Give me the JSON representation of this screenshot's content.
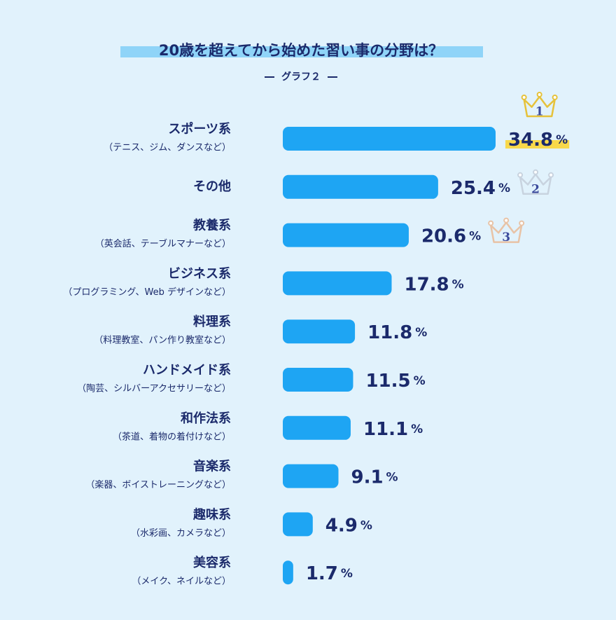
{
  "chart_data": {
    "type": "bar",
    "orientation": "horizontal",
    "title": "20歳を超えてから始めた習い事の分野は？",
    "subtitle": "グラフ２",
    "categories": [
      "スポーツ系",
      "その他",
      "教養系",
      "ビジネス系",
      "料理系",
      "ハンドメイド系",
      "和作法系",
      "音楽系",
      "趣味系",
      "美容系"
    ],
    "subcategories": [
      "（テニス、ジム、ダンスなど）",
      null,
      "（英会話、テーブルマナーなど）",
      "（プログラミング、Web デザインなど）",
      "（料理教室、パン作り教室など）",
      "（陶芸、シルバーアクセサリーなど）",
      "（茶道、着物の着付けなど）",
      "（楽器、ボイストレーニングなど）",
      "（水彩画、カメラなど）",
      "（メイク、ネイルなど）"
    ],
    "values": [
      34.8,
      25.4,
      20.6,
      17.8,
      11.8,
      11.5,
      11.1,
      9.1,
      4.9,
      1.7
    ],
    "unit": "%",
    "crowns": [
      1,
      2,
      3
    ],
    "color": "#1ea5f3"
  }
}
